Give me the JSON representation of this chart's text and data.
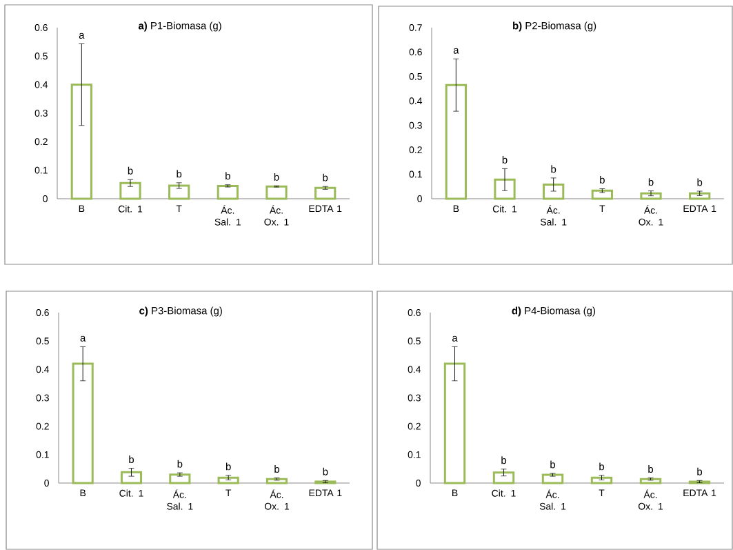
{
  "chart_data": [
    {
      "type": "bar",
      "title": "**a)** P1-Biomasa (g)",
      "categories": [
        "B",
        "Cit. 1",
        "T",
        "Ác. Sal. 1",
        "Ác. Ox. 1",
        "EDTA 1"
      ],
      "values": [
        0.4,
        0.055,
        0.046,
        0.045,
        0.043,
        0.038
      ],
      "errors": [
        0.143,
        0.012,
        0.01,
        0.004,
        0.002,
        0.005
      ],
      "color": "#9bbb59",
      "annotations": [
        "a",
        "b",
        "b",
        "b",
        "b",
        "b"
      ],
      "ylim": [
        0,
        0.6
      ],
      "yticks": [
        0,
        0.1,
        0.2,
        0.3,
        0.4,
        0.5,
        0.6
      ],
      "grid": false
    },
    {
      "type": "bar",
      "title": "**b)** P2-Biomasa (g)",
      "categories": [
        "B",
        "Cit. 1",
        "Ác. Sal. 1",
        "T",
        "Ác. Ox. 1",
        "EDTA 1"
      ],
      "values": [
        0.465,
        0.078,
        0.058,
        0.033,
        0.022,
        0.022
      ],
      "errors": [
        0.107,
        0.045,
        0.027,
        0.008,
        0.01,
        0.009
      ],
      "color": "#9bbb59",
      "annotations": [
        "a",
        "b",
        "b",
        "b",
        "b",
        "b"
      ],
      "ylim": [
        0,
        0.7
      ],
      "yticks": [
        0,
        0.1,
        0.2,
        0.3,
        0.4,
        0.5,
        0.6,
        0.7
      ],
      "grid": false
    },
    {
      "type": "bar",
      "title": "**c)** P3-Biomasa (g)",
      "categories": [
        "B",
        "Cit. 1",
        "Ác. Sal. 1",
        "T",
        "Ác. Ox. 1",
        "EDTA 1"
      ],
      "values": [
        0.42,
        0.038,
        0.03,
        0.019,
        0.014,
        0.005
      ],
      "errors": [
        0.06,
        0.014,
        0.006,
        0.008,
        0.004,
        0.004
      ],
      "color": "#9bbb59",
      "annotations": [
        "a",
        "b",
        "b",
        "b",
        "b",
        "b"
      ],
      "ylim": [
        0,
        0.6
      ],
      "yticks": [
        0,
        0.1,
        0.2,
        0.3,
        0.4,
        0.5,
        0.6
      ],
      "grid": false
    },
    {
      "type": "bar",
      "title": "**d)** P4-Biomasa (g)",
      "categories": [
        "B",
        "Cit. 1",
        "Ác. Sal. 1",
        "T",
        "Ác. Ox. 1",
        "EDTA 1"
      ],
      "values": [
        0.42,
        0.037,
        0.029,
        0.019,
        0.014,
        0.005
      ],
      "errors": [
        0.06,
        0.012,
        0.005,
        0.008,
        0.004,
        0.004
      ],
      "color": "#9bbb59",
      "annotations": [
        "a",
        "b",
        "b",
        "b",
        "b",
        "b"
      ],
      "ylim": [
        0,
        0.6
      ],
      "yticks": [
        0,
        0.1,
        0.2,
        0.3,
        0.4,
        0.5,
        0.6
      ],
      "grid": false
    }
  ]
}
